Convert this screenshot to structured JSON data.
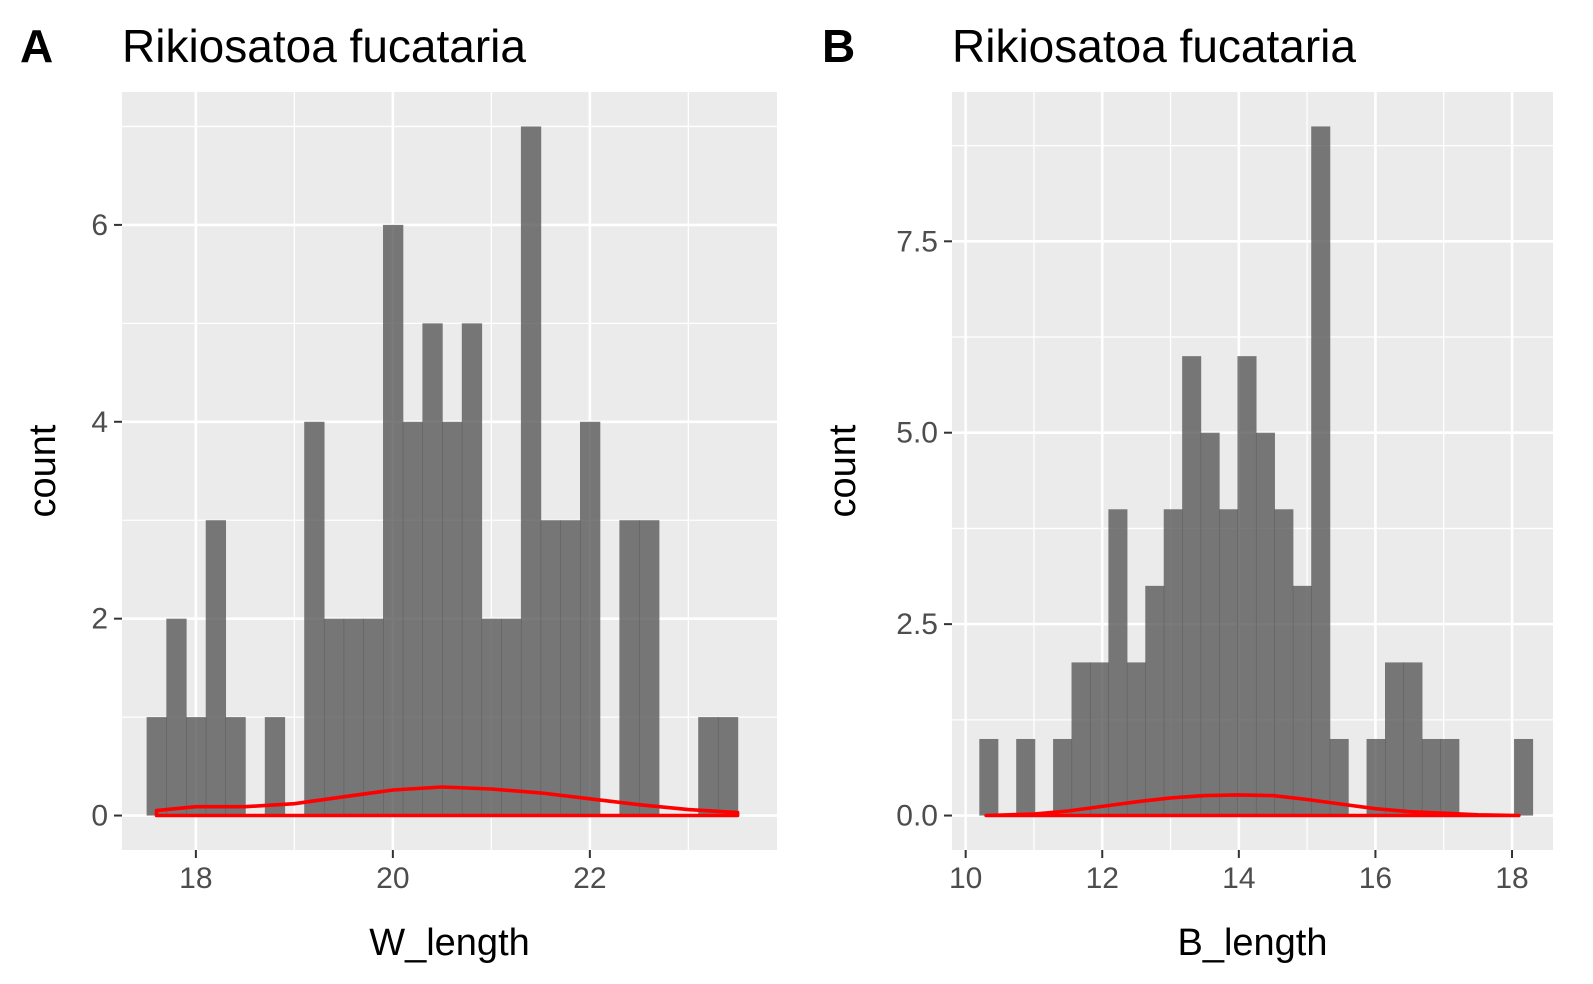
{
  "chart_data": [
    {
      "type": "bar",
      "panel_label": "A",
      "title": "Rikiosatoa fucataria",
      "xlabel": "W_length",
      "ylabel": "count",
      "xlim": [
        17.25,
        23.9
      ],
      "ylim": [
        -0.35,
        7.35
      ],
      "xticks": [
        18,
        20,
        22
      ],
      "xtick_labels": [
        "18",
        "20",
        "22"
      ],
      "yticks": [
        0,
        2,
        4,
        6
      ],
      "ytick_labels": [
        "0",
        "2",
        "4",
        "6"
      ],
      "x_minor_gridlines": [
        19,
        21,
        23
      ],
      "y_minor_gridlines": [
        1,
        3,
        5,
        7
      ],
      "grid": true,
      "bar_color": "#595959",
      "panel_background": "#ebebeb",
      "bin_width": 0.2,
      "bins": [
        {
          "start": 17.5,
          "count": 1
        },
        {
          "start": 17.7,
          "count": 2
        },
        {
          "start": 17.9,
          "count": 1
        },
        {
          "start": 18.1,
          "count": 3
        },
        {
          "start": 18.3,
          "count": 1
        },
        {
          "start": 18.5,
          "count": 0
        },
        {
          "start": 18.7,
          "count": 1
        },
        {
          "start": 18.9,
          "count": 0
        },
        {
          "start": 19.1,
          "count": 4
        },
        {
          "start": 19.3,
          "count": 2
        },
        {
          "start": 19.5,
          "count": 2
        },
        {
          "start": 19.7,
          "count": 2
        },
        {
          "start": 19.9,
          "count": 6
        },
        {
          "start": 20.1,
          "count": 4
        },
        {
          "start": 20.3,
          "count": 5
        },
        {
          "start": 20.5,
          "count": 4
        },
        {
          "start": 20.7,
          "count": 5
        },
        {
          "start": 20.9,
          "count": 2
        },
        {
          "start": 21.1,
          "count": 2
        },
        {
          "start": 21.3,
          "count": 7
        },
        {
          "start": 21.5,
          "count": 3
        },
        {
          "start": 21.7,
          "count": 3
        },
        {
          "start": 21.9,
          "count": 4
        },
        {
          "start": 22.1,
          "count": 0
        },
        {
          "start": 22.3,
          "count": 3
        },
        {
          "start": 22.5,
          "count": 3
        },
        {
          "start": 22.7,
          "count": 0
        },
        {
          "start": 22.9,
          "count": 0
        },
        {
          "start": 23.1,
          "count": 1
        },
        {
          "start": 23.3,
          "count": 1
        }
      ],
      "density_curve": {
        "color": "#ff0000",
        "x": [
          17.6,
          18.0,
          18.5,
          19.0,
          19.5,
          20.0,
          20.5,
          21.0,
          21.5,
          22.0,
          22.5,
          23.0,
          23.5
        ],
        "y": [
          0.05,
          0.09,
          0.09,
          0.12,
          0.19,
          0.26,
          0.29,
          0.27,
          0.23,
          0.17,
          0.11,
          0.06,
          0.03
        ]
      }
    },
    {
      "type": "bar",
      "panel_label": "B",
      "title": "Rikiosatoa fucataria",
      "xlabel": "B_length",
      "ylabel": "count",
      "xlim": [
        9.8,
        18.6
      ],
      "ylim": [
        -0.45,
        9.45
      ],
      "xticks": [
        10,
        12,
        14,
        16,
        18
      ],
      "xtick_labels": [
        "10",
        "12",
        "14",
        "16",
        "18"
      ],
      "yticks": [
        0,
        2.5,
        5,
        7.5
      ],
      "ytick_labels": [
        "0.0",
        "2.5",
        "5.0",
        "7.5"
      ],
      "x_minor_gridlines": [
        11,
        13,
        15,
        17
      ],
      "y_minor_gridlines": [
        1.25,
        3.75,
        6.25,
        8.75
      ],
      "grid": true,
      "bar_color": "#595959",
      "panel_background": "#ebebeb",
      "bin_width": 0.27,
      "bins": [
        {
          "start": 10.2,
          "count": 1
        },
        {
          "start": 10.47,
          "count": 0
        },
        {
          "start": 10.74,
          "count": 1
        },
        {
          "start": 11.01,
          "count": 0
        },
        {
          "start": 11.28,
          "count": 1
        },
        {
          "start": 11.55,
          "count": 2
        },
        {
          "start": 11.82,
          "count": 2
        },
        {
          "start": 12.09,
          "count": 4
        },
        {
          "start": 12.36,
          "count": 2
        },
        {
          "start": 12.63,
          "count": 3
        },
        {
          "start": 12.9,
          "count": 4
        },
        {
          "start": 13.17,
          "count": 6
        },
        {
          "start": 13.44,
          "count": 5
        },
        {
          "start": 13.71,
          "count": 4
        },
        {
          "start": 13.98,
          "count": 6
        },
        {
          "start": 14.25,
          "count": 5
        },
        {
          "start": 14.52,
          "count": 4
        },
        {
          "start": 14.79,
          "count": 3
        },
        {
          "start": 15.06,
          "count": 9
        },
        {
          "start": 15.33,
          "count": 1
        },
        {
          "start": 15.6,
          "count": 0
        },
        {
          "start": 15.87,
          "count": 1
        },
        {
          "start": 16.14,
          "count": 2
        },
        {
          "start": 16.41,
          "count": 2
        },
        {
          "start": 16.68,
          "count": 1
        },
        {
          "start": 16.95,
          "count": 1
        },
        {
          "start": 17.22,
          "count": 0
        },
        {
          "start": 17.49,
          "count": 0
        },
        {
          "start": 17.76,
          "count": 0
        },
        {
          "start": 18.03,
          "count": 1
        }
      ],
      "density_curve": {
        "color": "#ff0000",
        "x": [
          10.3,
          11.0,
          11.5,
          12.0,
          12.5,
          13.0,
          13.5,
          14.0,
          14.5,
          15.0,
          15.5,
          16.0,
          16.5,
          17.0,
          17.5,
          18.1
        ],
        "y": [
          0.0,
          0.02,
          0.06,
          0.12,
          0.18,
          0.23,
          0.26,
          0.27,
          0.26,
          0.21,
          0.15,
          0.09,
          0.05,
          0.03,
          0.01,
          0.0
        ]
      }
    }
  ]
}
